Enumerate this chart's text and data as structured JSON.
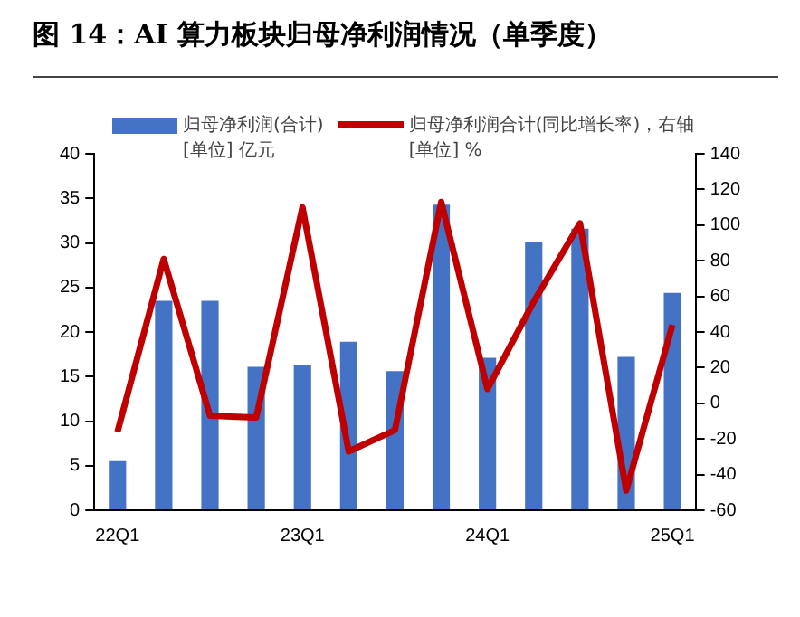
{
  "chart_data": {
    "type": "bar",
    "title": "图 14：AI 算力板块归母净利润情况（单季度）",
    "categories": [
      "22Q1",
      null,
      null,
      null,
      "23Q1",
      null,
      null,
      null,
      "24Q1",
      null,
      null,
      null,
      "25Q1"
    ],
    "series": [
      {
        "name": "归母净利润(合计)",
        "color": "#4472c4",
        "values": [
          5.5,
          23.5,
          23.5,
          16.1,
          16.3,
          18.9,
          15.6,
          34.3,
          17.1,
          30.1,
          31.6,
          17.2,
          24.4
        ]
      },
      {
        "name": "归母净利润合计(同比增长率)，右轴",
        "type": "line",
        "axis": "y2",
        "color": "#c00000",
        "values": [
          -16,
          81,
          -7,
          -8,
          110,
          -27,
          -15,
          113,
          8,
          57,
          101,
          -49,
          44
        ]
      }
    ],
    "ylabel": "[单位] 亿元",
    "y2label": "[单位] %",
    "ylim": [
      0,
      40
    ],
    "yticks": [
      0,
      5,
      10,
      15,
      20,
      25,
      30,
      35,
      40
    ],
    "y2lim": [
      -60,
      140
    ],
    "y2ticks": [
      -60,
      -40,
      -20,
      0,
      20,
      40,
      60,
      80,
      100,
      120,
      140
    ],
    "grid": false,
    "legend": "top",
    "marker": "none",
    "line_style": "solid"
  }
}
